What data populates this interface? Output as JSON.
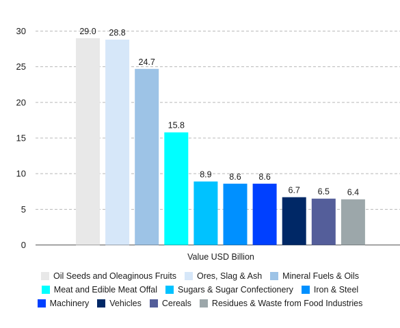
{
  "chart_data": {
    "type": "bar",
    "xlabel": "Value USD Billion",
    "ylabel": "",
    "ylim": [
      0,
      30
    ],
    "y_ticks": [
      0,
      5,
      10,
      15,
      20,
      25,
      30
    ],
    "grid": true,
    "legend_position": "bottom",
    "series": [
      {
        "name": "Oil Seeds and Oleaginous Fruits",
        "value": 29.0,
        "value_label": "29.0",
        "color": "#e8e8e8"
      },
      {
        "name": "Ores, Slag & Ash",
        "value": 28.8,
        "value_label": "28.8",
        "color": "#d6e7f9"
      },
      {
        "name": "Mineral Fuels & Oils",
        "value": 24.7,
        "value_label": "24.7",
        "color": "#9dc3e6"
      },
      {
        "name": "Meat and Edible Meat Offal",
        "value": 15.8,
        "value_label": "15.8",
        "color": "#00ffff"
      },
      {
        "name": "Sugars & Sugar Confectionery",
        "value": 8.9,
        "value_label": "8.9",
        "color": "#00c2ff"
      },
      {
        "name": "Iron & Steel",
        "value": 8.6,
        "value_label": "8.6",
        "color": "#0090ff"
      },
      {
        "name": "Machinery",
        "value": 8.6,
        "value_label": "8.6",
        "color": "#0040ff"
      },
      {
        "name": "Vehicles",
        "value": 6.7,
        "value_label": "6.7",
        "color": "#002866"
      },
      {
        "name": "Cereals",
        "value": 6.5,
        "value_label": "6.5",
        "color": "#545e9a"
      },
      {
        "name": "Residues & Waste from Food Industries",
        "value": 6.4,
        "value_label": "6.4",
        "color": "#9ca7aa"
      }
    ]
  }
}
